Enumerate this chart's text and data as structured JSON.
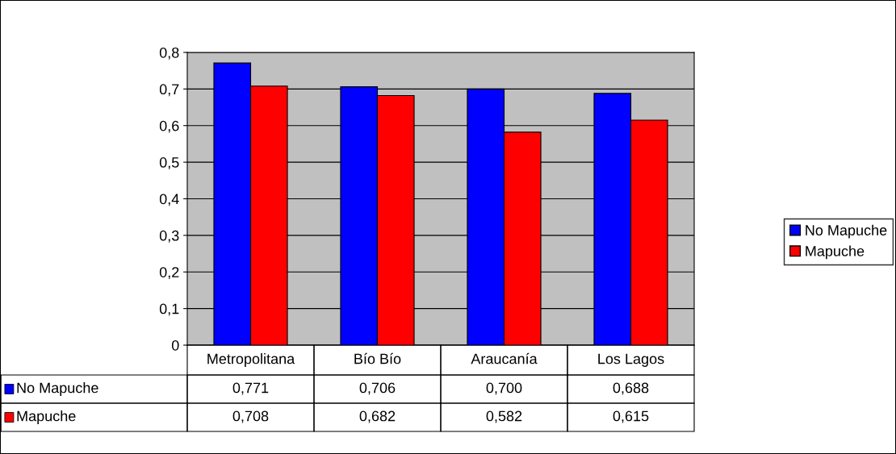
{
  "chart_data": {
    "type": "bar",
    "categories": [
      "Metropolitana",
      "Bío Bío",
      "Araucanía",
      "Los Lagos"
    ],
    "series": [
      {
        "name": "No Mapuche",
        "color": "#0000ff",
        "values": [
          0.771,
          0.706,
          0.7,
          0.688
        ],
        "value_labels": [
          "0,771",
          "0,706",
          "0,700",
          "0,688"
        ]
      },
      {
        "name": "Mapuche",
        "color": "#ff0000",
        "values": [
          0.708,
          0.682,
          0.582,
          0.615
        ],
        "value_labels": [
          "0,708",
          "0,682",
          "0,582",
          "0,615"
        ]
      }
    ],
    "ylim": [
      0,
      0.8
    ],
    "yticks": [
      {
        "value": 0,
        "label": "0"
      },
      {
        "value": 0.1,
        "label": "0,1"
      },
      {
        "value": 0.2,
        "label": "0,2"
      },
      {
        "value": 0.3,
        "label": "0,3"
      },
      {
        "value": 0.4,
        "label": "0,4"
      },
      {
        "value": 0.5,
        "label": "0,5"
      },
      {
        "value": 0.6,
        "label": "0,6"
      },
      {
        "value": 0.7,
        "label": "0,7"
      },
      {
        "value": 0.8,
        "label": "0,8"
      }
    ],
    "grid": "y",
    "legend": "right"
  }
}
